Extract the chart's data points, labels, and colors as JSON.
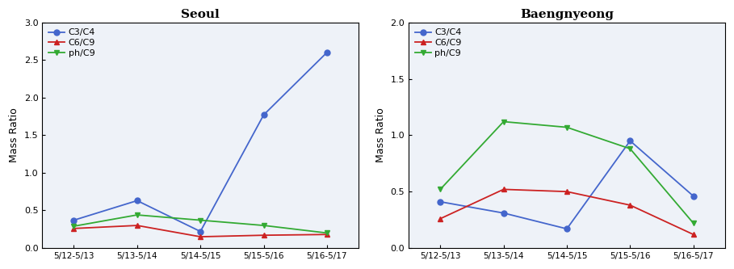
{
  "x_labels": [
    "5/12-5/13",
    "5/13-5/14",
    "5/14-5/15",
    "5/15-5/16",
    "5/16-5/17"
  ],
  "seoul": {
    "title": "Seoul",
    "ylim": [
      0.0,
      3.0
    ],
    "yticks": [
      0.0,
      0.5,
      1.0,
      1.5,
      2.0,
      2.5,
      3.0
    ],
    "C3C4": [
      0.37,
      0.63,
      0.22,
      1.77,
      2.6
    ],
    "C6C9": [
      0.26,
      0.3,
      0.15,
      0.17,
      0.18
    ],
    "phC9": [
      0.29,
      0.44,
      0.37,
      0.3,
      0.2
    ]
  },
  "baengnyeong": {
    "title": "Baengnyeong",
    "ylim": [
      0.0,
      2.0
    ],
    "yticks": [
      0.0,
      0.5,
      1.0,
      1.5,
      2.0
    ],
    "C3C4": [
      0.41,
      0.31,
      0.17,
      0.95,
      0.46
    ],
    "C6C9": [
      0.26,
      0.52,
      0.5,
      0.38,
      0.12
    ],
    "phC9": [
      0.52,
      1.12,
      1.07,
      0.88,
      0.22
    ]
  },
  "colors": {
    "C3C4": "#4466cc",
    "C6C9": "#cc2222",
    "phC9": "#33aa33"
  },
  "legend_labels": [
    "C3/C4",
    "C6/C9",
    "ph/C9"
  ],
  "markers": {
    "C3C4": "o",
    "C6C9": "^",
    "phC9": "v"
  },
  "ylabel": "Mass Ratio",
  "markersize": 5,
  "linewidth": 1.3,
  "linestyle": "-"
}
